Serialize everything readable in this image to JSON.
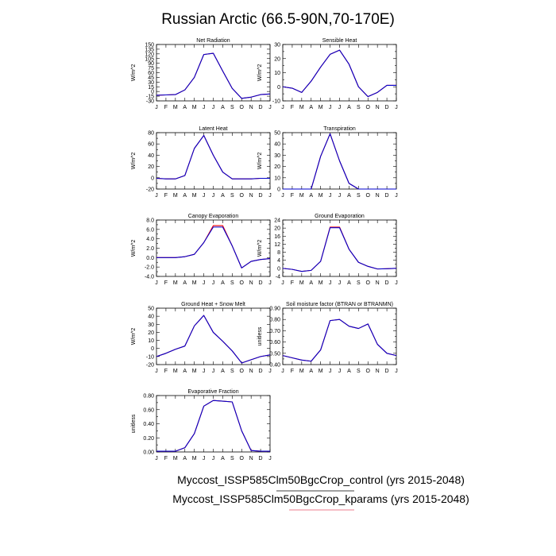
{
  "title": "Russian Arctic (66.5-90N,70-170E)",
  "months": [
    "J",
    "F",
    "M",
    "A",
    "M",
    "J",
    "J",
    "A",
    "S",
    "O",
    "N",
    "D",
    "J"
  ],
  "legend": {
    "entries": [
      {
        "label": "Myccost_ISSP585Clm50BgcCrop_control (yrs 2015-2048)",
        "color": "#000000"
      },
      {
        "label": "Myccost_ISSP585Clm50BgcCrop_kparams (yrs 2015-2048)",
        "color": "#e8506a"
      }
    ]
  },
  "colors": {
    "control": "#ff0000",
    "kparams": "#0000cc"
  },
  "chart_data": [
    {
      "type": "line",
      "title": "Net Radiation",
      "ylabel": "W/m^2",
      "ylim": [
        -30,
        150
      ],
      "yticks": [
        -30,
        -15,
        0,
        15,
        30,
        45,
        60,
        75,
        90,
        105,
        120,
        135,
        150
      ],
      "ytick_labels": [
        "-30",
        "-15",
        "0",
        "15",
        "30",
        "45",
        "60",
        "75",
        "90",
        "105",
        "120",
        "135",
        "150"
      ],
      "ylabeled_every": 1,
      "series": [
        {
          "name": "control",
          "values": [
            -12,
            -11,
            -10,
            5,
            45,
            118,
            122,
            65,
            10,
            -22,
            -18,
            -10,
            -8
          ]
        },
        {
          "name": "kparams",
          "values": [
            -12,
            -11,
            -10,
            5,
            45,
            118,
            122,
            65,
            10,
            -22,
            -18,
            -10,
            -8
          ]
        }
      ]
    },
    {
      "type": "line",
      "title": "Sensible Heat",
      "ylabel": "W/m^2",
      "ylim": [
        -10,
        30
      ],
      "yticks": [
        -10,
        -5,
        0,
        5,
        10,
        15,
        20,
        25,
        30
      ],
      "ytick_labels": [
        "-10",
        "",
        "0",
        "",
        "10",
        "",
        "20",
        "",
        "30"
      ],
      "series": [
        {
          "name": "control",
          "values": [
            0,
            -1,
            -4,
            4,
            14,
            23,
            26,
            16,
            0,
            -7,
            -4,
            1,
            1
          ]
        },
        {
          "name": "kparams",
          "values": [
            0,
            -1,
            -4,
            4,
            14,
            23,
            26,
            16,
            0,
            -7,
            -4,
            1,
            1
          ]
        }
      ]
    },
    {
      "type": "line",
      "title": "Latent Heat",
      "ylabel": "W/m^2",
      "ylim": [
        -20,
        80
      ],
      "yticks": [
        -20,
        -10,
        0,
        10,
        20,
        30,
        40,
        50,
        60,
        70,
        80
      ],
      "ytick_labels": [
        "-20",
        "",
        "0",
        "",
        "20",
        "",
        "40",
        "",
        "60",
        "",
        "80"
      ],
      "series": [
        {
          "name": "control",
          "values": [
            -1,
            -2,
            -2,
            4,
            52,
            75,
            40,
            10,
            -2,
            -2,
            -2,
            -1,
            -1
          ]
        },
        {
          "name": "kparams",
          "values": [
            -1,
            -2,
            -2,
            4,
            52,
            75,
            40,
            10,
            -2,
            -2,
            -2,
            -1,
            -1
          ]
        }
      ]
    },
    {
      "type": "line",
      "title": "Transpiration",
      "ylabel": "W/m^2",
      "ylim": [
        0,
        50
      ],
      "yticks": [
        0,
        5,
        10,
        15,
        20,
        25,
        30,
        35,
        40,
        45,
        50
      ],
      "ytick_labels": [
        "0",
        "",
        "10",
        "",
        "20",
        "",
        "30",
        "",
        "40",
        "",
        "50"
      ],
      "series": [
        {
          "name": "control",
          "values": [
            0,
            0,
            0,
            0,
            29,
            49,
            25,
            5,
            0,
            0,
            0,
            0,
            0
          ]
        },
        {
          "name": "kparams",
          "values": [
            0,
            0,
            0,
            0,
            29,
            49,
            25,
            5,
            0,
            0,
            0,
            0,
            0
          ]
        }
      ]
    },
    {
      "type": "line",
      "title": "Canopy Evaporation",
      "ylabel": "W/m^2",
      "ylim": [
        -4,
        8
      ],
      "yticks": [
        -4,
        -3,
        -2,
        -1,
        0,
        1,
        2,
        3,
        4,
        5,
        6,
        7,
        8
      ],
      "ytick_labels": [
        "-4.0",
        "",
        "-2.0",
        "",
        "0.0",
        "",
        "2.0",
        "",
        "4.0",
        "",
        "6.0",
        "",
        "8.0"
      ],
      "series": [
        {
          "name": "control",
          "values": [
            0,
            0,
            0,
            0.2,
            0.7,
            3.2,
            6.8,
            6.8,
            2.5,
            -2.2,
            -0.8,
            -0.4,
            -0.2
          ]
        },
        {
          "name": "kparams",
          "values": [
            0,
            0,
            0,
            0.2,
            0.7,
            3.2,
            6.5,
            6.5,
            2.5,
            -2.2,
            -0.8,
            -0.4,
            -0.2
          ]
        }
      ]
    },
    {
      "type": "line",
      "title": "Ground Evaporation",
      "ylabel": "W/m^2",
      "ylim": [
        -4,
        24
      ],
      "yticks": [
        -4,
        -2,
        0,
        2,
        4,
        6,
        8,
        10,
        12,
        14,
        16,
        18,
        20,
        22,
        24
      ],
      "ytick_labels": [
        "-4",
        "",
        "0",
        "",
        "4",
        "",
        "8",
        "",
        "12",
        "",
        "16",
        "",
        "20",
        "",
        "24"
      ],
      "series": [
        {
          "name": "control",
          "values": [
            0,
            -0.5,
            -1.5,
            -1,
            3.5,
            20.5,
            20.5,
            9.5,
            3,
            1,
            -0.3,
            -0.2,
            0
          ]
        },
        {
          "name": "kparams",
          "values": [
            0,
            -0.5,
            -1.5,
            -1,
            3.5,
            20.2,
            20.2,
            9.5,
            3,
            1,
            -0.3,
            -0.2,
            0
          ]
        }
      ]
    },
    {
      "type": "line",
      "title": "Ground Heat + Snow Melt",
      "ylabel": "W/m^2",
      "ylim": [
        -20,
        50
      ],
      "yticks": [
        -20,
        -10,
        0,
        10,
        20,
        30,
        40,
        50
      ],
      "ytick_labels": [
        "-20",
        "-10",
        "0",
        "10",
        "20",
        "30",
        "40",
        "50"
      ],
      "series": [
        {
          "name": "control",
          "values": [
            -10,
            -6,
            -1,
            3,
            28,
            41,
            20,
            9,
            -3,
            -18,
            -14,
            -10,
            -8
          ]
        },
        {
          "name": "kparams",
          "values": [
            -10,
            -6,
            -1,
            3,
            28,
            41,
            20,
            9,
            -3,
            -18,
            -14,
            -10,
            -8
          ]
        }
      ]
    },
    {
      "type": "line",
      "title": "Soil moisture factor (BTRAN or BTRANMN)",
      "ylabel": "unitless",
      "ylim": [
        0.4,
        0.9
      ],
      "yticks": [
        0.4,
        0.45,
        0.5,
        0.55,
        0.6,
        0.65,
        0.7,
        0.75,
        0.8,
        0.85,
        0.9
      ],
      "ytick_labels": [
        "0.40",
        "",
        "0.50",
        "",
        "0.60",
        "",
        "0.70",
        "",
        "0.80",
        "",
        "0.90"
      ],
      "series": [
        {
          "name": "control",
          "values": [
            0.48,
            0.46,
            0.44,
            0.43,
            0.53,
            0.79,
            0.8,
            0.74,
            0.72,
            0.76,
            0.58,
            0.5,
            0.48
          ]
        },
        {
          "name": "kparams",
          "values": [
            0.48,
            0.46,
            0.44,
            0.43,
            0.53,
            0.79,
            0.8,
            0.74,
            0.72,
            0.76,
            0.58,
            0.5,
            0.48
          ]
        }
      ]
    },
    {
      "type": "line",
      "title": "Evaporative Fraction",
      "ylabel": "unitless",
      "ylim": [
        0,
        0.8
      ],
      "yticks": [
        0,
        0.1,
        0.2,
        0.3,
        0.4,
        0.5,
        0.6,
        0.7,
        0.8
      ],
      "ytick_labels": [
        "0.00",
        "",
        "0.20",
        "",
        "0.40",
        "",
        "0.60",
        "",
        "0.80"
      ],
      "series": [
        {
          "name": "control",
          "values": [
            0.01,
            0.01,
            0.01,
            0.06,
            0.26,
            0.65,
            0.73,
            0.72,
            0.71,
            0.3,
            0.02,
            0.01,
            0.01
          ]
        },
        {
          "name": "kparams",
          "values": [
            0.01,
            0.01,
            0.01,
            0.06,
            0.26,
            0.65,
            0.73,
            0.72,
            0.71,
            0.3,
            0.02,
            0.01,
            0.01
          ]
        }
      ]
    }
  ]
}
